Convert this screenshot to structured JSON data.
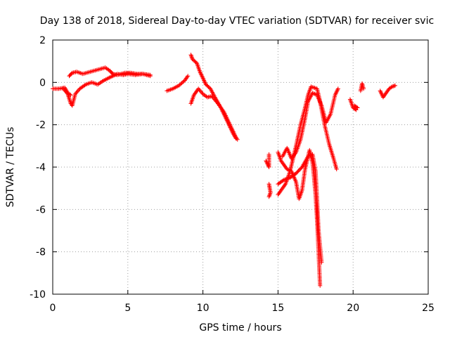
{
  "chart_data": {
    "type": "scatter",
    "title": "Day 138 of 2018, Sidereal Day-to-day VTEC variation (SDTVAR) for receiver svic",
    "xlabel": "GPS time / hours",
    "ylabel": "SDTVAR / TECUs",
    "xlim": [
      0,
      25
    ],
    "ylim": [
      -10,
      2
    ],
    "xticks": [
      0,
      5,
      10,
      15,
      20,
      25
    ],
    "yticks": [
      -10,
      -8,
      -6,
      -4,
      -2,
      0,
      2
    ],
    "xtick_labels": [
      "0",
      "5",
      "10",
      "15",
      "20",
      "25"
    ],
    "ytick_labels": [
      "-10",
      "-8",
      "-6",
      "-4",
      "-2",
      "0",
      "2"
    ],
    "grid": true,
    "marker": "plus",
    "color": "#ff0000",
    "series": [
      {
        "name": "svic",
        "segments": [
          [
            [
              0,
              -0.3
            ],
            [
              0.4,
              -0.3
            ],
            [
              0.8,
              -0.25
            ],
            [
              1.0,
              -0.5
            ],
            [
              1.2,
              -0.6
            ]
          ],
          [
            [
              0.7,
              -0.3
            ],
            [
              1.0,
              -0.55
            ],
            [
              1.2,
              -1.0
            ],
            [
              1.3,
              -1.1
            ],
            [
              1.5,
              -0.55
            ],
            [
              1.8,
              -0.3
            ],
            [
              2.2,
              -0.1
            ],
            [
              2.6,
              0.0
            ],
            [
              3.0,
              -0.1
            ],
            [
              3.3,
              0.05
            ],
            [
              3.7,
              0.2
            ],
            [
              4.0,
              0.3
            ],
            [
              4.3,
              0.4
            ],
            [
              4.7,
              0.35
            ],
            [
              5.0,
              0.4
            ],
            [
              5.5,
              0.35
            ],
            [
              6.0,
              0.4
            ],
            [
              6.5,
              0.3
            ]
          ],
          [
            [
              1.1,
              0.3
            ],
            [
              1.3,
              0.45
            ],
            [
              1.6,
              0.5
            ],
            [
              2.0,
              0.4
            ],
            [
              2.5,
              0.5
            ],
            [
              3.0,
              0.6
            ],
            [
              3.5,
              0.7
            ],
            [
              3.8,
              0.55
            ],
            [
              4.0,
              0.4
            ],
            [
              4.3,
              0.35
            ],
            [
              4.8,
              0.45
            ],
            [
              5.2,
              0.45
            ],
            [
              5.6,
              0.4
            ],
            [
              6.0,
              0.4
            ],
            [
              6.5,
              0.35
            ]
          ],
          [
            [
              7.6,
              -0.4
            ],
            [
              8.0,
              -0.3
            ],
            [
              8.4,
              -0.15
            ],
            [
              8.8,
              0.1
            ],
            [
              9.0,
              0.3
            ]
          ],
          [
            [
              9.2,
              -1.0
            ],
            [
              9.4,
              -0.6
            ],
            [
              9.7,
              -0.3
            ],
            [
              10.0,
              -0.55
            ],
            [
              10.3,
              -0.7
            ],
            [
              10.6,
              -0.65
            ],
            [
              11.0,
              -1.0
            ],
            [
              11.4,
              -1.4
            ],
            [
              11.8,
              -2.0
            ],
            [
              12.2,
              -2.6
            ],
            [
              12.3,
              -2.7
            ]
          ],
          [
            [
              9.2,
              1.3
            ],
            [
              9.3,
              1.1
            ],
            [
              9.6,
              0.9
            ],
            [
              9.8,
              0.5
            ],
            [
              10.0,
              0.2
            ],
            [
              10.2,
              -0.1
            ],
            [
              10.5,
              -0.3
            ],
            [
              10.8,
              -0.7
            ],
            [
              11.2,
              -1.2
            ],
            [
              11.6,
              -1.8
            ],
            [
              12.0,
              -2.4
            ],
            [
              12.2,
              -2.65
            ]
          ],
          [
            [
              14.2,
              -3.7
            ],
            [
              14.4,
              -4.0
            ],
            [
              14.4,
              -3.4
            ]
          ],
          [
            [
              14.4,
              -4.8
            ],
            [
              14.5,
              -5.2
            ],
            [
              14.4,
              -5.4
            ]
          ],
          [
            [
              15.0,
              -4.8
            ],
            [
              15.4,
              -4.6
            ],
            [
              15.8,
              -4.5
            ],
            [
              16.2,
              -4.3
            ],
            [
              16.6,
              -4.0
            ],
            [
              17.0,
              -3.5
            ],
            [
              17.1,
              -3.2
            ],
            [
              17.3,
              -3.8
            ],
            [
              17.4,
              -4.5
            ],
            [
              17.5,
              -5.3
            ],
            [
              17.6,
              -6.5
            ],
            [
              17.7,
              -8.0
            ],
            [
              17.8,
              -9.6
            ]
          ],
          [
            [
              15.0,
              -5.3
            ],
            [
              15.5,
              -4.8
            ],
            [
              15.8,
              -4.2
            ],
            [
              16.0,
              -3.6
            ],
            [
              16.2,
              -3.0
            ],
            [
              16.5,
              -2.0
            ],
            [
              16.8,
              -1.2
            ],
            [
              17.0,
              -0.6
            ],
            [
              17.2,
              -0.2
            ],
            [
              17.6,
              -0.3
            ],
            [
              17.8,
              -0.9
            ],
            [
              18.1,
              -2.0
            ],
            [
              18.4,
              -2.9
            ],
            [
              18.7,
              -3.6
            ],
            [
              18.9,
              -4.1
            ]
          ],
          [
            [
              15.0,
              -3.3
            ],
            [
              15.2,
              -3.7
            ],
            [
              15.4,
              -3.9
            ],
            [
              15.6,
              -4.1
            ],
            [
              15.9,
              -4.2
            ],
            [
              16.2,
              -4.7
            ],
            [
              16.4,
              -5.5
            ],
            [
              16.6,
              -5.1
            ],
            [
              16.8,
              -4.1
            ],
            [
              17.0,
              -3.5
            ],
            [
              17.3,
              -3.4
            ],
            [
              17.5,
              -4.2
            ],
            [
              17.6,
              -5.5
            ],
            [
              17.7,
              -7.0
            ],
            [
              17.9,
              -8.5
            ]
          ],
          [
            [
              15.3,
              -3.5
            ],
            [
              15.6,
              -3.1
            ],
            [
              15.9,
              -3.6
            ],
            [
              16.2,
              -3.3
            ],
            [
              16.5,
              -2.7
            ],
            [
              16.8,
              -1.7
            ],
            [
              17.0,
              -0.9
            ],
            [
              17.3,
              -0.5
            ],
            [
              17.6,
              -0.6
            ],
            [
              17.9,
              -1.1
            ],
            [
              18.2,
              -1.9
            ],
            [
              18.5,
              -1.5
            ],
            [
              18.8,
              -0.6
            ],
            [
              19.0,
              -0.3
            ]
          ],
          [
            [
              19.8,
              -0.8
            ],
            [
              20.0,
              -1.2
            ],
            [
              20.2,
              -1.3
            ],
            [
              20.1,
              -1.1
            ],
            [
              20.3,
              -1.2
            ]
          ],
          [
            [
              20.5,
              -0.4
            ],
            [
              20.6,
              -0.05
            ],
            [
              20.7,
              -0.3
            ]
          ],
          [
            [
              21.8,
              -0.4
            ],
            [
              22.0,
              -0.7
            ],
            [
              22.2,
              -0.5
            ],
            [
              22.4,
              -0.3
            ],
            [
              22.6,
              -0.2
            ],
            [
              22.8,
              -0.15
            ]
          ]
        ]
      }
    ]
  }
}
